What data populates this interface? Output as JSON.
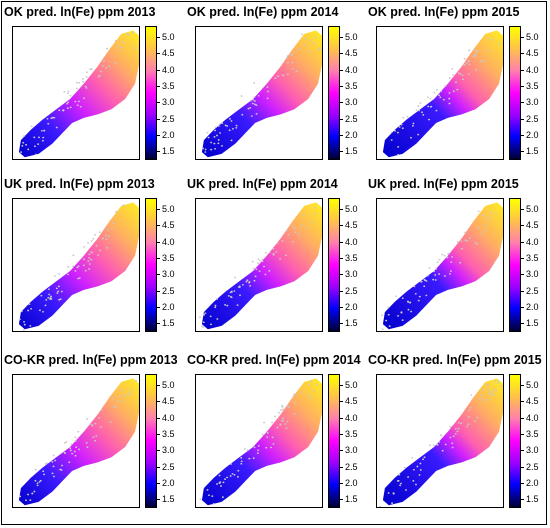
{
  "panels": [
    {
      "title": "OK pred. ln(Fe) ppm 2013",
      "method": "OK",
      "year": 2013
    },
    {
      "title": "OK pred. ln(Fe) ppm 2014",
      "method": "OK",
      "year": 2014
    },
    {
      "title": "OK pred. ln(Fe) ppm 2015",
      "method": "OK",
      "year": 2015
    },
    {
      "title": "UK pred. ln(Fe) ppm 2013",
      "method": "UK",
      "year": 2013
    },
    {
      "title": "UK pred. ln(Fe) ppm 2014",
      "method": "UK",
      "year": 2014
    },
    {
      "title": "UK pred. ln(Fe) ppm 2015",
      "method": "UK",
      "year": 2015
    },
    {
      "title": "CO-KR pred. ln(Fe) ppm 2013",
      "method": "CO-KR",
      "year": 2013
    },
    {
      "title": "CO-KR pred. ln(Fe) ppm 2014",
      "method": "CO-KR",
      "year": 2014
    },
    {
      "title": "CO-KR pred. ln(Fe) ppm 2015",
      "method": "CO-KR",
      "year": 2015
    }
  ],
  "colorbar": {
    "ticks": [
      "5.0",
      "4.5",
      "4.0",
      "3.5",
      "3.0",
      "2.5",
      "2.0",
      "1.5"
    ],
    "min": 1.25,
    "max": 5.35,
    "colors": [
      "#000033",
      "#0000ff",
      "#9a00ff",
      "#ff00ff",
      "#ff7fae",
      "#ffc04c",
      "#ffff00"
    ]
  },
  "legend_colors": {
    "points": "#c8c8c8",
    "frame": "#000000"
  }
}
